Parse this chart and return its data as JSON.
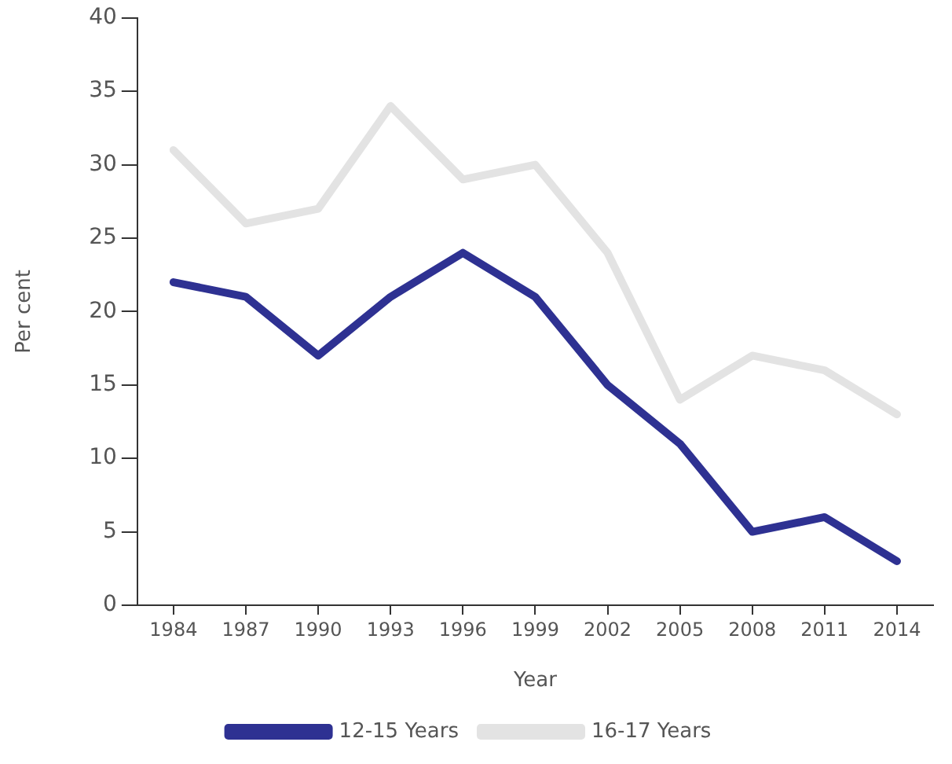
{
  "chart_data": {
    "type": "line",
    "xlabel": "Year",
    "ylabel": "Per cent",
    "categories": [
      "1984",
      "1987",
      "1990",
      "1993",
      "1996",
      "1999",
      "2002",
      "2005",
      "2008",
      "2011",
      "2014"
    ],
    "series": [
      {
        "name": "12-15 Years",
        "color": "#2e3192",
        "values": [
          22,
          21,
          17,
          21,
          24,
          21,
          15,
          11,
          5,
          6,
          3
        ]
      },
      {
        "name": "16-17 Years",
        "color": "#e3e3e3",
        "values": [
          31,
          26,
          27,
          34,
          29,
          30,
          24,
          14,
          17,
          16,
          13
        ]
      }
    ],
    "ylim": [
      0,
      40
    ],
    "yticks": [
      0,
      5,
      10,
      15,
      20,
      25,
      30,
      35,
      40
    ],
    "grid": false,
    "legend": "bottom",
    "marker": "none",
    "line_style": "solid"
  }
}
